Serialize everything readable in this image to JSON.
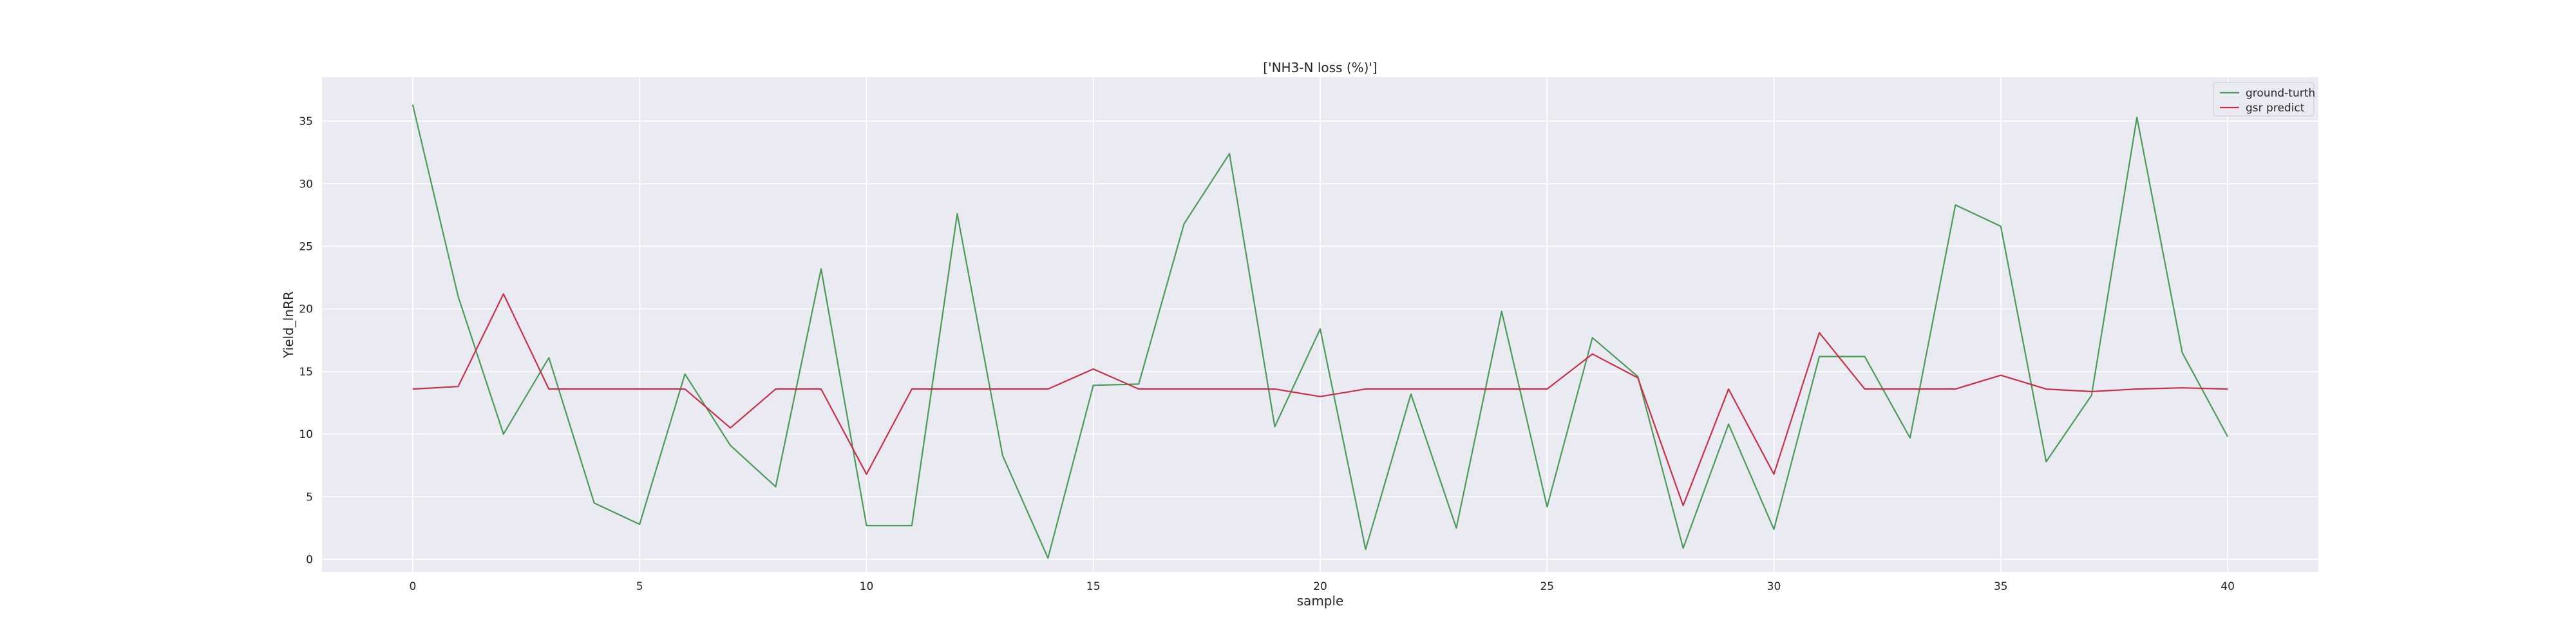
{
  "chart_data": {
    "type": "line",
    "title": "['NH3-N loss (%)']",
    "xlabel": "sample",
    "ylabel": "Yield_lnRR",
    "xlim": [
      -2,
      42
    ],
    "ylim": [
      -1,
      38.5
    ],
    "x_ticks": [
      0,
      5,
      10,
      15,
      20,
      25,
      30,
      35,
      40
    ],
    "y_ticks": [
      0,
      5,
      10,
      15,
      20,
      25,
      30,
      35
    ],
    "grid": true,
    "legend_position": "top-right",
    "x": [
      0,
      1,
      2,
      3,
      4,
      5,
      6,
      7,
      8,
      9,
      10,
      11,
      12,
      13,
      14,
      15,
      16,
      17,
      18,
      19,
      20,
      21,
      22,
      23,
      24,
      25,
      26,
      27,
      28,
      29,
      30,
      31,
      32,
      33,
      34,
      35,
      36,
      37,
      38,
      39,
      40
    ],
    "series": [
      {
        "name": "ground-turth",
        "color": "#4c9a5a",
        "values": [
          36.3,
          21.0,
          10.0,
          16.1,
          4.5,
          2.8,
          14.8,
          9.1,
          5.8,
          23.2,
          2.7,
          2.7,
          27.6,
          8.3,
          0.1,
          13.9,
          14.0,
          26.8,
          32.4,
          10.6,
          18.4,
          0.8,
          13.2,
          2.5,
          19.8,
          4.2,
          17.7,
          14.6,
          0.9,
          10.8,
          2.4,
          16.2,
          16.2,
          9.7,
          28.3,
          26.6,
          7.8,
          13.1,
          35.3,
          16.5,
          9.8
        ]
      },
      {
        "name": "gsr predict",
        "color": "#c8304a",
        "values": [
          13.6,
          13.8,
          21.2,
          13.6,
          13.6,
          13.6,
          13.6,
          10.5,
          13.6,
          13.6,
          6.8,
          13.6,
          13.6,
          13.6,
          13.6,
          15.2,
          13.6,
          13.6,
          13.6,
          13.6,
          13.0,
          13.6,
          13.6,
          13.6,
          13.6,
          13.6,
          16.4,
          14.5,
          4.3,
          13.6,
          6.8,
          18.1,
          13.6,
          13.6,
          13.6,
          14.7,
          13.6,
          13.4,
          13.6,
          13.7,
          13.6
        ]
      }
    ]
  }
}
